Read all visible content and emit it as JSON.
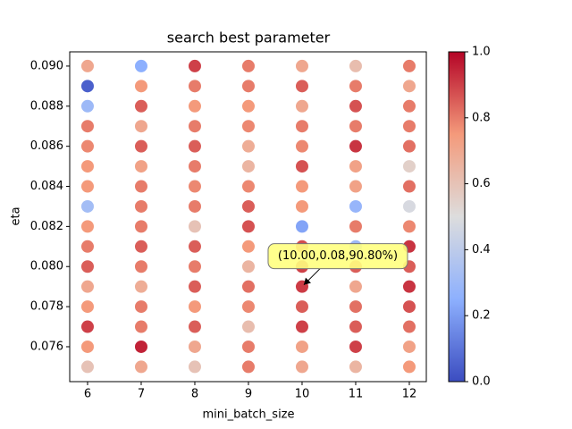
{
  "chart_data": {
    "type": "scatter",
    "title": "search best parameter",
    "x_label": "mini_batch_size",
    "y_label": "eta",
    "x": [
      6,
      6,
      6,
      6,
      6,
      6,
      6,
      6,
      6,
      6,
      6,
      6,
      6,
      6,
      6,
      6,
      7,
      7,
      7,
      7,
      7,
      7,
      7,
      7,
      7,
      7,
      7,
      7,
      7,
      7,
      7,
      7,
      8,
      8,
      8,
      8,
      8,
      8,
      8,
      8,
      8,
      8,
      8,
      8,
      8,
      8,
      8,
      8,
      9,
      9,
      9,
      9,
      9,
      9,
      9,
      9,
      9,
      9,
      9,
      9,
      9,
      9,
      9,
      9,
      10,
      10,
      10,
      10,
      10,
      10,
      10,
      10,
      10,
      10,
      10,
      10,
      10,
      10,
      10,
      10,
      11,
      11,
      11,
      11,
      11,
      11,
      11,
      11,
      11,
      11,
      11,
      11,
      11,
      11,
      11,
      11,
      12,
      12,
      12,
      12,
      12,
      12,
      12,
      12,
      12,
      12,
      12,
      12,
      12,
      12,
      12,
      12
    ],
    "values": [
      0.09,
      0.089,
      0.088,
      0.087,
      0.086,
      0.085,
      0.084,
      0.083,
      0.082,
      0.081,
      0.08,
      0.079,
      0.078,
      0.077,
      0.076,
      0.075,
      0.09,
      0.089,
      0.088,
      0.087,
      0.086,
      0.085,
      0.084,
      0.083,
      0.082,
      0.081,
      0.08,
      0.079,
      0.078,
      0.077,
      0.076,
      0.075,
      0.09,
      0.089,
      0.088,
      0.087,
      0.086,
      0.085,
      0.084,
      0.083,
      0.082,
      0.081,
      0.08,
      0.079,
      0.078,
      0.077,
      0.076,
      0.075,
      0.09,
      0.089,
      0.088,
      0.087,
      0.086,
      0.085,
      0.084,
      0.083,
      0.082,
      0.081,
      0.08,
      0.079,
      0.078,
      0.077,
      0.076,
      0.075,
      0.09,
      0.089,
      0.088,
      0.087,
      0.086,
      0.085,
      0.084,
      0.083,
      0.082,
      0.081,
      0.08,
      0.079,
      0.078,
      0.077,
      0.076,
      0.075,
      0.09,
      0.089,
      0.088,
      0.087,
      0.086,
      0.085,
      0.084,
      0.083,
      0.082,
      0.081,
      0.08,
      0.079,
      0.078,
      0.077,
      0.076,
      0.075,
      0.09,
      0.089,
      0.088,
      0.087,
      0.086,
      0.085,
      0.084,
      0.083,
      0.082,
      0.081,
      0.08,
      0.079,
      0.078,
      0.077,
      0.076,
      0.075
    ],
    "color_values": [
      0.7,
      0.05,
      0.3,
      0.8,
      0.78,
      0.75,
      0.75,
      0.32,
      0.75,
      0.8,
      0.85,
      0.7,
      0.75,
      0.9,
      0.75,
      0.6,
      0.25,
      0.75,
      0.85,
      0.7,
      0.85,
      0.72,
      0.8,
      0.8,
      0.8,
      0.85,
      0.8,
      0.68,
      0.8,
      0.8,
      0.95,
      0.7,
      0.9,
      0.8,
      0.75,
      0.8,
      0.85,
      0.8,
      0.78,
      0.8,
      0.6,
      0.85,
      0.8,
      0.85,
      0.75,
      0.85,
      0.7,
      0.6,
      0.8,
      0.8,
      0.75,
      0.78,
      0.68,
      0.65,
      0.78,
      0.85,
      0.87,
      0.75,
      0.65,
      0.82,
      0.78,
      0.62,
      0.8,
      0.8,
      0.7,
      0.85,
      0.7,
      0.8,
      0.78,
      0.87,
      0.75,
      0.75,
      0.22,
      0.88,
      0.9,
      0.908,
      0.85,
      0.9,
      0.72,
      0.7,
      0.62,
      0.8,
      0.87,
      0.8,
      0.92,
      0.72,
      0.72,
      0.28,
      0.8,
      0.3,
      0.85,
      0.7,
      0.82,
      0.85,
      0.9,
      0.65,
      0.8,
      0.7,
      0.8,
      0.8,
      0.82,
      0.55,
      0.82,
      0.48,
      0.78,
      0.92,
      0.85,
      0.92,
      0.87,
      0.82,
      0.72,
      0.75
    ],
    "colormap": "coolwarm",
    "xlim": [
      5.667,
      12.317
    ],
    "xticks": [
      6,
      7,
      8,
      9,
      10,
      11,
      12
    ],
    "ylim": [
      0.07426,
      0.09071
    ],
    "yticks": [
      0.076,
      0.078,
      {
        "value": 0.08,
        "label": "0.080"
      },
      0.082,
      0.084,
      0.086,
      0.088,
      {
        "value": 0.09,
        "label": "0.090"
      }
    ],
    "colorbar": {
      "lim": [
        0,
        1
      ],
      "ticks": [
        {
          "value": 0,
          "label": "0.0"
        },
        {
          "value": 0.2,
          "label": "0.2"
        },
        {
          "value": 0.4,
          "label": "0.4"
        },
        {
          "value": 0.6,
          "label": "0.6"
        },
        {
          "value": 0.8,
          "label": "0.8"
        },
        {
          "value": 1,
          "label": "1.0"
        }
      ]
    },
    "annotation": {
      "text": "(10.00,0.08,90.80%)",
      "x": 10,
      "y": 0.079
    }
  }
}
